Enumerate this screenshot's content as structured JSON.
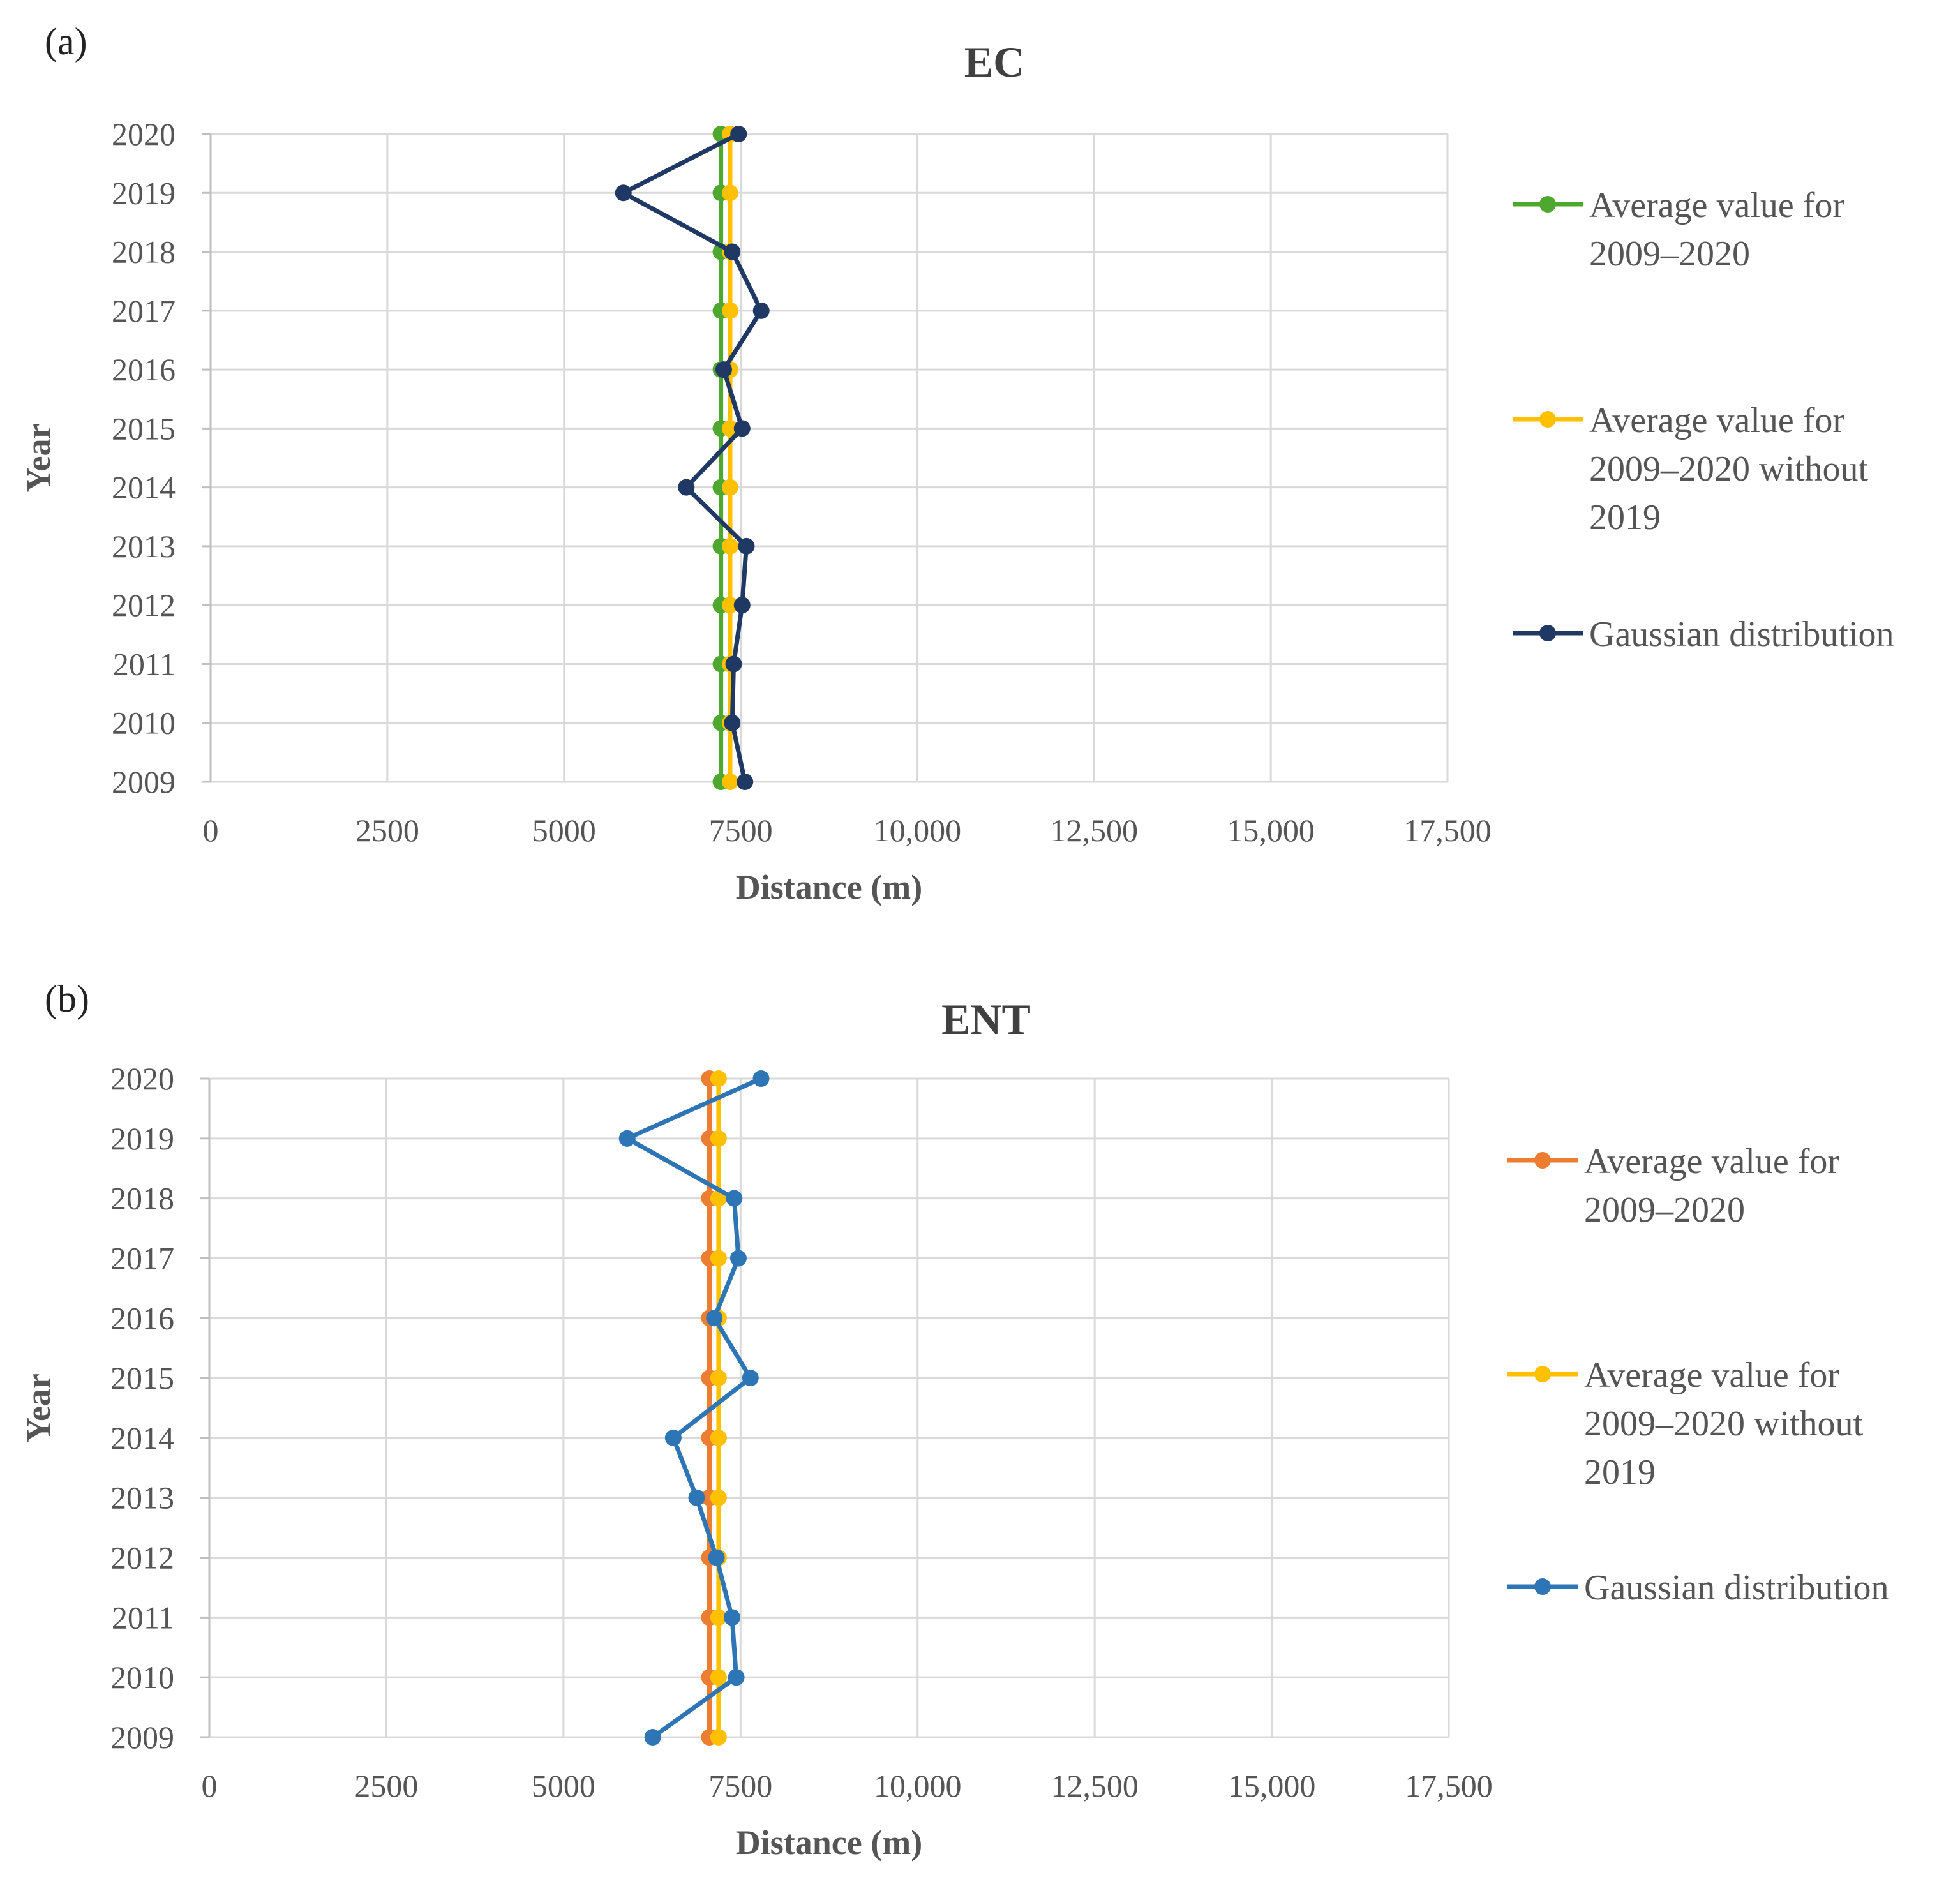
{
  "chart_data": [
    {
      "type": "line",
      "panel_label": "(a)",
      "title": "EC",
      "xlabel": "Distance (m)",
      "ylabel": "Year",
      "xlim": [
        0,
        17500
      ],
      "x_ticks": [
        0,
        2500,
        5000,
        7500,
        10000,
        12500,
        15000,
        17500
      ],
      "x_tick_labels": [
        "0",
        "2500",
        "5000",
        "7500",
        "10,000",
        "12,500",
        "15,000",
        "17,500"
      ],
      "categories": [
        "2009",
        "2010",
        "2011",
        "2012",
        "2013",
        "2014",
        "2015",
        "2016",
        "2017",
        "2018",
        "2019",
        "2020"
      ],
      "grid": true,
      "legend_position": "right",
      "series": [
        {
          "name_lines": [
            "Average value for",
            "2009–2020"
          ],
          "color": "#4ea72e",
          "values": [
            7220,
            7220,
            7220,
            7220,
            7220,
            7220,
            7220,
            7220,
            7220,
            7220,
            7220,
            7220
          ]
        },
        {
          "name_lines": [
            "Average value for",
            "2009–2020 without",
            "2019"
          ],
          "color": "#ffc000",
          "values": [
            7350,
            7350,
            7350,
            7350,
            7350,
            7350,
            7350,
            7350,
            7350,
            7350,
            7350,
            7350
          ]
        },
        {
          "name_lines": [
            "Gaussian distribution"
          ],
          "color": "#1f3864",
          "values": [
            7560,
            7380,
            7400,
            7520,
            7580,
            6730,
            7520,
            7260,
            7790,
            7380,
            5840,
            7470
          ]
        }
      ]
    },
    {
      "type": "line",
      "panel_label": "(b)",
      "title": "ENT",
      "xlabel": "Distance (m)",
      "ylabel": "Year",
      "xlim": [
        0,
        17500
      ],
      "x_ticks": [
        0,
        2500,
        5000,
        7500,
        10000,
        12500,
        15000,
        17500
      ],
      "x_tick_labels": [
        "0",
        "2500",
        "5000",
        "7500",
        "10,000",
        "12,500",
        "15,000",
        "17,500"
      ],
      "categories": [
        "2009",
        "2010",
        "2011",
        "2012",
        "2013",
        "2014",
        "2015",
        "2016",
        "2017",
        "2018",
        "2019",
        "2020"
      ],
      "grid": true,
      "legend_position": "right",
      "series": [
        {
          "name_lines": [
            "Average value for",
            "2009–2020"
          ],
          "color": "#ed7d31",
          "values": [
            7060,
            7060,
            7060,
            7060,
            7060,
            7060,
            7060,
            7060,
            7060,
            7060,
            7060,
            7060
          ]
        },
        {
          "name_lines": [
            "Average value for",
            "2009–2020 without",
            "2019"
          ],
          "color": "#ffc000",
          "values": [
            7190,
            7190,
            7190,
            7190,
            7190,
            7190,
            7190,
            7190,
            7190,
            7190,
            7190,
            7190
          ]
        },
        {
          "name_lines": [
            "Gaussian distribution"
          ],
          "color": "#2e75b6",
          "values": [
            6260,
            7440,
            7380,
            7160,
            6880,
            6550,
            7640,
            7130,
            7470,
            7410,
            5900,
            7790
          ]
        }
      ]
    }
  ]
}
